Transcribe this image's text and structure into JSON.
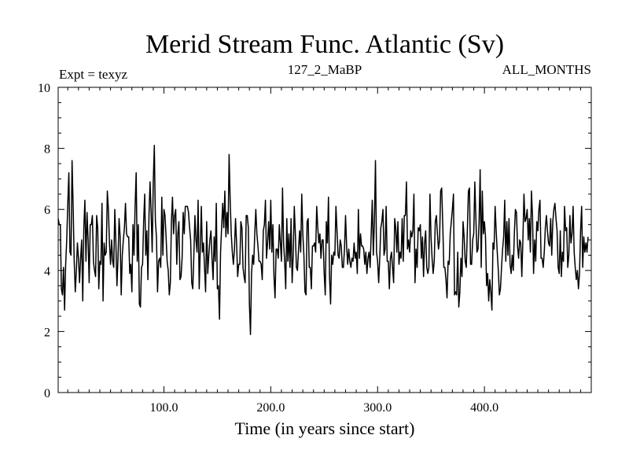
{
  "chart_data": {
    "type": "line",
    "title": "Merid Stream Func. Atlantic (Sv)",
    "experiment_label": "Expt = texyz",
    "run_label": "127_2_MaBP",
    "months_label": "ALL_MONTHS",
    "xlabel": "Time (in years since start)",
    "ylabel": "",
    "xlim": [
      1,
      500
    ],
    "ylim": [
      0,
      10
    ],
    "x_ticks": [
      100,
      200,
      300,
      400
    ],
    "x_tick_labels": [
      "100.0",
      "200.0",
      "300.0",
      "400.0"
    ],
    "y_ticks": [
      0,
      2,
      4,
      6,
      8,
      10
    ],
    "y_tick_labels": [
      "0",
      "2",
      "4",
      "6",
      "8",
      "10"
    ],
    "grid": false,
    "line_color": "#000000",
    "series": [
      {
        "x_start": 1,
        "x_step": 1,
        "values": [
          5.7,
          5.5,
          5.5,
          3.4,
          3.2,
          4.1,
          2.7,
          4.2,
          5.0,
          6.2,
          7.2,
          4.6,
          4.5,
          7.6,
          6.1,
          4.3,
          3.3,
          4.0,
          4.9,
          4.4,
          3.6,
          4.4,
          5.0,
          3.0,
          5.4,
          6.3,
          4.3,
          5.9,
          5.0,
          3.6,
          5.5,
          5.5,
          5.8,
          4.3,
          4.0,
          3.8,
          5.8,
          5.4,
          3.4,
          4.3,
          4.2,
          6.2,
          3.0,
          4.9,
          4.5,
          4.6,
          6.6,
          6.0,
          4.9,
          4.2,
          5.0,
          4.3,
          4.1,
          6.0,
          4.9,
          3.5,
          4.4,
          5.7,
          5.1,
          3.2,
          4.5,
          5.0,
          5.4,
          6.2,
          5.2,
          5.1,
          5.1,
          3.9,
          4.2,
          3.3,
          5.5,
          4.5,
          6.1,
          7.2,
          4.3,
          5.5,
          2.9,
          2.8,
          4.1,
          4.2,
          5.6,
          6.5,
          4.5,
          5.3,
          3.7,
          5.8,
          6.9,
          5.9,
          4.6,
          6.9,
          8.1,
          5.6,
          5.1,
          3.3,
          4.3,
          4.4,
          4.1,
          6.4,
          4.5,
          6.0,
          5.8,
          5.1,
          4.3,
          4.0,
          3.2,
          3.6,
          5.6,
          6.4,
          5.2,
          5.8,
          6.0,
          4.2,
          5.2,
          5.6,
          3.7,
          3.8,
          4.4,
          5.9,
          5.2,
          6.1,
          6.1,
          6.1,
          5.9,
          5.4,
          5.0,
          3.6,
          3.4,
          4.5,
          5.8,
          5.0,
          4.6,
          6.3,
          3.4,
          4.7,
          6.1,
          4.6,
          4.9,
          4.1,
          3.3,
          5.6,
          3.9,
          4.5,
          5.0,
          5.3,
          4.4,
          3.7,
          5.1,
          4.3,
          6.2,
          3.4,
          3.5,
          2.4,
          4.6,
          5.4,
          6.2,
          5.4,
          6.6,
          5.1,
          5.9,
          5.2,
          7.8,
          6.3,
          5.2,
          4.6,
          4.2,
          4.7,
          5.7,
          4.9,
          3.8,
          4.2,
          4.2,
          5.6,
          5.4,
          4.1,
          3.8,
          3.6,
          5.8,
          5.8,
          5.4,
          2.9,
          1.9,
          3.9,
          4.5,
          4.2,
          5.2,
          6.0,
          5.2,
          4.8,
          4.3,
          4.3,
          4.2,
          3.7,
          5.3,
          5.5,
          6.3,
          4.4,
          4.9,
          5.6,
          4.7,
          6.3,
          4.6,
          5.5,
          3.8,
          3.1,
          4.7,
          4.7,
          4.4,
          5.5,
          4.9,
          4.3,
          6.7,
          4.9,
          4.3,
          3.4,
          5.7,
          4.3,
          5.2,
          4.1,
          5.7,
          3.6,
          4.5,
          6.1,
          5.2,
          4.1,
          4.0,
          4.7,
          5.3,
          4.6,
          6.5,
          5.2,
          4.5,
          3.3,
          3.2,
          5.6,
          5.7,
          4.1,
          4.1,
          3.4,
          4.8,
          4.8,
          4.9,
          4.6,
          6.1,
          5.4,
          4.9,
          5.2,
          4.4,
          5.0,
          5.0,
          3.9,
          3.2,
          5.6,
          4.9,
          6.4,
          3.8,
          2.9,
          4.5,
          4.2,
          4.6,
          4.5,
          6.1,
          5.3,
          4.5,
          4.4,
          5.0,
          4.8,
          4.1,
          4.1,
          4.7,
          5.8,
          4.8,
          4.2,
          4.7,
          4.3,
          4.1,
          4.4,
          4.3,
          4.9,
          4.4,
          4.6,
          3.9,
          6.0,
          4.4,
          5.2,
          4.8,
          4.8,
          4.7,
          4.2,
          4.6,
          3.9,
          4.4,
          4.6,
          4.1,
          5.2,
          6.3,
          4.5,
          5.6,
          7.6,
          4.6,
          4.3,
          3.6,
          4.4,
          5.4,
          5.6,
          6.0,
          4.5,
          4.7,
          6.1,
          4.3,
          4.3,
          3.4,
          4.4,
          4.6,
          4.1,
          3.6,
          5.7,
          5.4,
          4.6,
          5.6,
          4.2,
          4.6,
          4.4,
          5.7,
          4.3,
          5.8,
          5.8,
          6.9,
          4.7,
          5.0,
          4.6,
          5.3,
          5.1,
          5.3,
          6.5,
          3.6,
          4.7,
          4.1,
          5.4,
          5.3,
          5.5,
          4.4,
          5.1,
          3.8,
          4.9,
          5.3,
          4.1,
          3.9,
          4.1,
          6.5,
          5.1,
          4.4,
          3.9,
          4.3,
          5.6,
          5.8,
          5.2,
          4.7,
          5.0,
          6.6,
          6.7,
          5.5,
          4.1,
          4.1,
          3.7,
          3.1,
          4.3,
          4.2,
          5.2,
          5.6,
          6.0,
          6.5,
          3.2,
          3.3,
          3.2,
          4.6,
          2.8,
          3.3,
          4.4,
          3.8,
          5.6,
          5.1,
          4.3,
          4.1,
          5.3,
          6.6,
          6.7,
          4.2,
          4.2,
          5.0,
          5.2,
          6.9,
          5.7,
          4.6,
          4.7,
          5.6,
          7.3,
          4.1,
          6.6,
          5.2,
          5.6,
          5.1,
          3.5,
          3.9,
          3.0,
          3.7,
          3.3,
          2.7,
          4.9,
          4.7,
          6.1,
          5.3,
          4.6,
          4.0,
          3.2,
          3.4,
          4.1,
          4.7,
          5.1,
          6.3,
          4.3,
          5.6,
          4.5,
          5.7,
          4.2,
          3.9,
          4.5,
          4.0,
          5.2,
          6.0,
          5.9,
          4.8,
          4.4,
          5.0,
          4.9,
          3.8,
          5.0,
          6.5,
          5.6,
          5.7,
          6.0,
          5.0,
          5.7,
          4.6,
          6.6,
          5.8,
          3.9,
          5.0,
          4.3,
          5.6,
          5.3,
          6.0,
          6.3,
          4.4,
          4.4,
          4.1,
          4.6,
          5.4,
          5.8,
          5.3,
          4.9,
          4.8,
          5.7,
          4.5,
          5.6,
          6.0,
          6.2,
          5.7,
          5.3,
          4.1,
          3.9,
          5.3,
          3.8,
          4.6,
          4.3,
          6.1,
          5.3,
          5.4,
          4.1,
          4.5,
          5.8,
          4.9,
          5.2,
          6.1,
          4.6,
          4.1,
          3.7,
          4.0,
          3.4,
          3.9,
          5.3,
          6.1,
          4.1,
          5.1,
          4.6,
          4.9,
          4.6,
          5.1
        ]
      }
    ]
  }
}
